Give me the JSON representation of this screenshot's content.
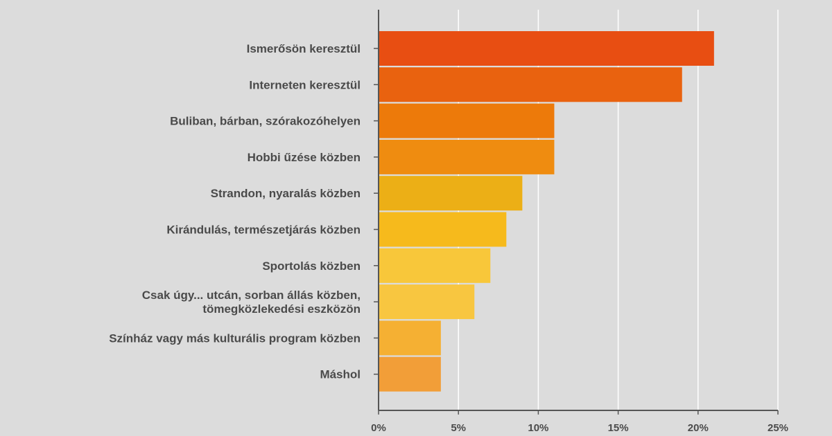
{
  "chart_data": {
    "type": "bar",
    "orientation": "horizontal",
    "title": "",
    "xlabel": "",
    "ylabel": "",
    "xlim": [
      0,
      25
    ],
    "x_ticks": [
      0,
      5,
      10,
      15,
      20,
      25
    ],
    "x_tick_labels": [
      "0%",
      "5%",
      "10%",
      "15%",
      "20%",
      "25%"
    ],
    "grid": "vertical",
    "categories": [
      [
        "Ismerősön keresztül"
      ],
      [
        "Interneten keresztül"
      ],
      [
        "Buliban, bárban, szórakozóhelyen"
      ],
      [
        "Hobbi űzése közben"
      ],
      [
        "Strandon, nyaralás közben"
      ],
      [
        "Kirándulás, természetjárás közben"
      ],
      [
        "Sportolás közben"
      ],
      [
        "Csak úgy... utcán, sorban állás közben,",
        "tömegközlekedési eszközön"
      ],
      [
        "Színház vagy más kulturális program közben"
      ],
      [
        "Máshol"
      ]
    ],
    "values": [
      21,
      19,
      11,
      11,
      9,
      8,
      7,
      6,
      3.9,
      3.9
    ],
    "colors": [
      "#e84e12",
      "#e9620f",
      "#ed7a0a",
      "#ef8c10",
      "#ecaf16",
      "#f6ba1c",
      "#f8c73a",
      "#f8c640",
      "#f5b033",
      "#f29e38"
    ],
    "background": "#dcdcdc",
    "grid_color": "#ffffff",
    "axis_color": "#555555"
  }
}
